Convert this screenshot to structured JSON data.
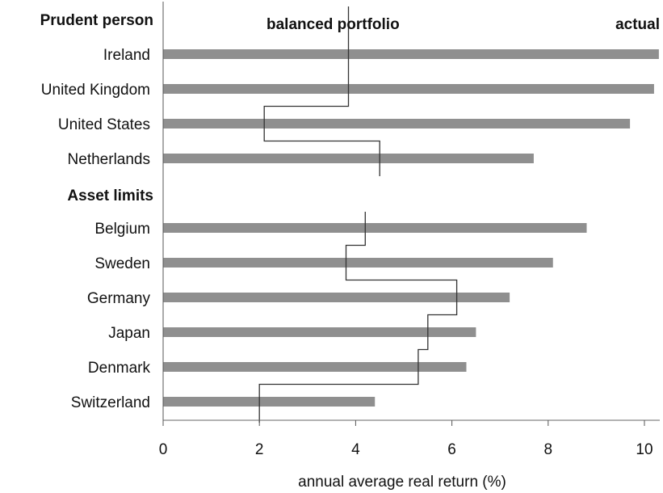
{
  "chart_data": {
    "type": "bar",
    "orientation": "horizontal",
    "xlabel": "annual average real return (%)",
    "xlim": [
      0,
      10.3
    ],
    "xticks": [
      0,
      2,
      4,
      6,
      8,
      10
    ],
    "series_labels": {
      "balanced": "balanced portfolio",
      "actual": "actual"
    },
    "groups": [
      {
        "label": "Prudent person",
        "categories": [
          "Ireland",
          "United Kingdom",
          "United States",
          "Netherlands"
        ]
      },
      {
        "label": "Asset limits",
        "categories": [
          "Belgium",
          "Sweden",
          "Germany",
          "Japan",
          "Denmark",
          "Switzerland"
        ]
      }
    ],
    "categories": [
      "Ireland",
      "United Kingdom",
      "United States",
      "Netherlands",
      "Belgium",
      "Sweden",
      "Germany",
      "Japan",
      "Denmark",
      "Switzerland"
    ],
    "series": [
      {
        "name": "actual",
        "values": [
          10.3,
          10.2,
          9.7,
          7.7,
          8.8,
          8.1,
          7.2,
          6.5,
          6.3,
          4.4
        ]
      },
      {
        "name": "balanced portfolio",
        "values": [
          3.85,
          3.85,
          2.1,
          4.5,
          4.2,
          3.8,
          6.1,
          5.5,
          5.3,
          2.0
        ]
      }
    ],
    "colors": {
      "bar": "#8f8f8f",
      "step_line": "#333333"
    },
    "grid": false
  }
}
